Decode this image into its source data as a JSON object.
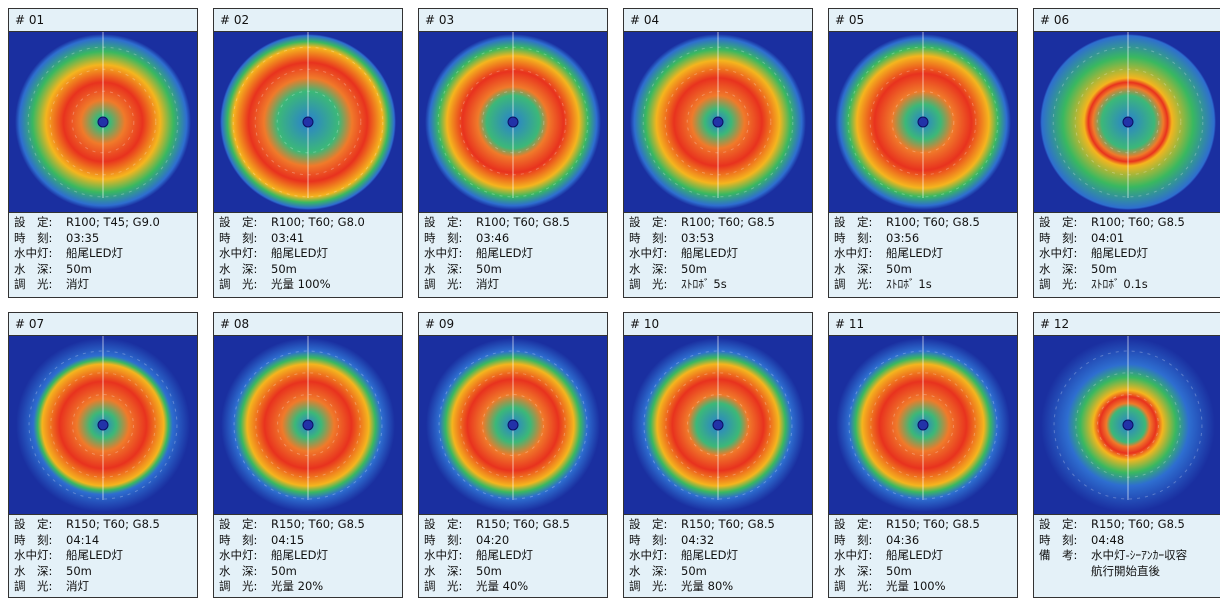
{
  "panels": [
    {
      "id": "# 01",
      "rows": [
        {
          "label": "設　定:",
          "value": "R100; T45; G9.0"
        },
        {
          "label": "時　刻:",
          "value": "03:35"
        },
        {
          "label": "水中灯:",
          "value": "船尾LED灯"
        },
        {
          "label": "水　深:",
          "value": "50m"
        },
        {
          "label": "調　光:",
          "value": "消灯"
        }
      ]
    },
    {
      "id": "# 02",
      "rows": [
        {
          "label": "設　定:",
          "value": "R100; T60; G8.0"
        },
        {
          "label": "時　刻:",
          "value": "03:41"
        },
        {
          "label": "水中灯:",
          "value": "船尾LED灯"
        },
        {
          "label": "水　深:",
          "value": "50m"
        },
        {
          "label": "調　光:",
          "value": "光量 100%"
        }
      ]
    },
    {
      "id": "# 03",
      "rows": [
        {
          "label": "設　定:",
          "value": "R100; T60; G8.5"
        },
        {
          "label": "時　刻:",
          "value": "03:46"
        },
        {
          "label": "水中灯:",
          "value": "船尾LED灯"
        },
        {
          "label": "水　深:",
          "value": "50m"
        },
        {
          "label": "調　光:",
          "value": "消灯"
        }
      ]
    },
    {
      "id": "# 04",
      "rows": [
        {
          "label": "設　定:",
          "value": "R100; T60; G8.5"
        },
        {
          "label": "時　刻:",
          "value": "03:53"
        },
        {
          "label": "水中灯:",
          "value": "船尾LED灯"
        },
        {
          "label": "水　深:",
          "value": "50m"
        },
        {
          "label": "調　光:",
          "value": "ｽﾄﾛﾎﾞ 5s"
        }
      ]
    },
    {
      "id": "# 05",
      "rows": [
        {
          "label": "設　定:",
          "value": "R100; T60; G8.5"
        },
        {
          "label": "時　刻:",
          "value": "03:56"
        },
        {
          "label": "水中灯:",
          "value": "船尾LED灯"
        },
        {
          "label": "水　深:",
          "value": "50m"
        },
        {
          "label": "調　光:",
          "value": "ｽﾄﾛﾎﾞ 1s"
        }
      ]
    },
    {
      "id": "# 06",
      "rows": [
        {
          "label": "設　定:",
          "value": "R100; T60; G8.5"
        },
        {
          "label": "時　刻:",
          "value": "04:01"
        },
        {
          "label": "水中灯:",
          "value": "船尾LED灯"
        },
        {
          "label": "水　深:",
          "value": "50m"
        },
        {
          "label": "調　光:",
          "value": "ｽﾄﾛﾎﾞ 0.1s"
        }
      ]
    },
    {
      "id": "# 07",
      "rows": [
        {
          "label": "設　定:",
          "value": "R150; T60; G8.5"
        },
        {
          "label": "時　刻:",
          "value": "04:14"
        },
        {
          "label": "水中灯:",
          "value": "船尾LED灯"
        },
        {
          "label": "水　深:",
          "value": "50m"
        },
        {
          "label": "調　光:",
          "value": "消灯"
        }
      ]
    },
    {
      "id": "# 08",
      "rows": [
        {
          "label": "設　定:",
          "value": "R150; T60; G8.5"
        },
        {
          "label": "時　刻:",
          "value": "04:15"
        },
        {
          "label": "水中灯:",
          "value": "船尾LED灯"
        },
        {
          "label": "水　深:",
          "value": "50m"
        },
        {
          "label": "調　光:",
          "value": "光量 20%"
        }
      ]
    },
    {
      "id": "# 09",
      "rows": [
        {
          "label": "設　定:",
          "value": "R150; T60; G8.5"
        },
        {
          "label": "時　刻:",
          "value": "04:20"
        },
        {
          "label": "水中灯:",
          "value": "船尾LED灯"
        },
        {
          "label": "水　深:",
          "value": "50m"
        },
        {
          "label": "調　光:",
          "value": "光量 40%"
        }
      ]
    },
    {
      "id": "# 10",
      "rows": [
        {
          "label": "設　定:",
          "value": "R150; T60; G8.5"
        },
        {
          "label": "時　刻:",
          "value": "04:32"
        },
        {
          "label": "水中灯:",
          "value": "船尾LED灯"
        },
        {
          "label": "水　深:",
          "value": "50m"
        },
        {
          "label": "調　光:",
          "value": "光量 80%"
        }
      ]
    },
    {
      "id": "# 11",
      "rows": [
        {
          "label": "設　定:",
          "value": "R150; T60; G8.5"
        },
        {
          "label": "時　刻:",
          "value": "04:36"
        },
        {
          "label": "水中灯:",
          "value": "船尾LED灯"
        },
        {
          "label": "水　深:",
          "value": "50m"
        },
        {
          "label": "調　光:",
          "value": "光量 100%"
        }
      ]
    },
    {
      "id": "# 12",
      "rows": [
        {
          "label": "設　定:",
          "value": "R150; T60; G8.5"
        },
        {
          "label": "時　刻:",
          "value": "04:48"
        },
        {
          "label": "備　考:",
          "lines": [
            "水中灯-ｼｰｱﾝｶｰ収容",
            "航行開始直後"
          ]
        }
      ]
    }
  ]
}
